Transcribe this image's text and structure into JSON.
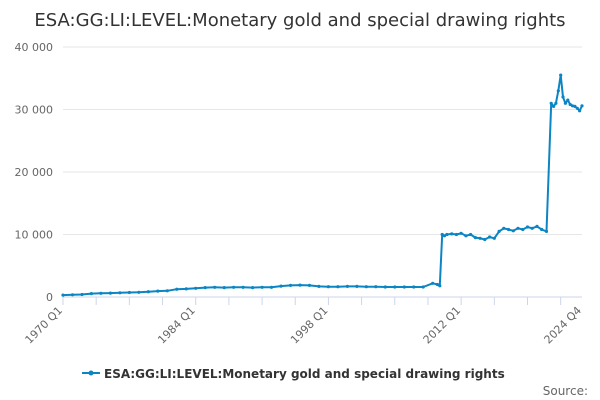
{
  "colors": {
    "series": "#0B85C3",
    "grid": "#e6e6e6",
    "axis": "#ccd6eb",
    "text": "#333333",
    "muted": "#666666"
  },
  "source_label": "Source:",
  "chart_data": {
    "type": "line",
    "title": "ESA:GG:LI:LEVEL:Monetary gold and special drawing rights",
    "xlabel": "",
    "ylabel": "",
    "ylim": [
      0,
      40000
    ],
    "yticks": [
      0,
      10000,
      20000,
      30000,
      40000
    ],
    "ytick_labels": [
      "0",
      "10 000",
      "20 000",
      "30 000",
      "40 000"
    ],
    "xlim": [
      1970.0,
      2024.75
    ],
    "xticks": [
      1970.0,
      1984.0,
      1998.0,
      2012.0,
      2024.75
    ],
    "xtick_labels": [
      "1970 Q1",
      "1984 Q1",
      "1998 Q1",
      "2012 Q1",
      "2024 Q4"
    ],
    "grid": true,
    "legend": "bottom-center",
    "series": [
      {
        "name": "ESA:GG:LI:LEVEL:Monetary gold and special drawing rights",
        "x": [
          1970.0,
          1971.0,
          1972.0,
          1973.0,
          1974.0,
          1975.0,
          1976.0,
          1977.0,
          1978.0,
          1979.0,
          1980.0,
          1981.0,
          1982.0,
          1983.0,
          1984.0,
          1985.0,
          1986.0,
          1987.0,
          1988.0,
          1989.0,
          1990.0,
          1991.0,
          1992.0,
          1993.0,
          1994.0,
          1995.0,
          1996.0,
          1997.0,
          1998.0,
          1999.0,
          2000.0,
          2001.0,
          2002.0,
          2003.0,
          2004.0,
          2005.0,
          2006.0,
          2007.0,
          2008.0,
          2009.0,
          2009.5,
          2009.75,
          2010.0,
          2010.25,
          2010.5,
          2011.0,
          2011.5,
          2012.0,
          2012.5,
          2013.0,
          2013.5,
          2014.0,
          2014.5,
          2015.0,
          2015.5,
          2016.0,
          2016.5,
          2017.0,
          2017.5,
          2018.0,
          2018.5,
          2019.0,
          2019.5,
          2020.0,
          2020.5,
          2021.0,
          2021.5,
          2021.75,
          2022.0,
          2022.25,
          2022.5,
          2022.75,
          2023.0,
          2023.25,
          2023.5,
          2023.75,
          2024.0,
          2024.25,
          2024.5,
          2024.75
        ],
        "values": [
          300,
          350,
          400,
          550,
          600,
          620,
          680,
          720,
          760,
          850,
          950,
          1000,
          1250,
          1300,
          1400,
          1500,
          1550,
          1500,
          1550,
          1550,
          1500,
          1550,
          1550,
          1750,
          1850,
          1900,
          1850,
          1700,
          1650,
          1650,
          1700,
          1700,
          1650,
          1650,
          1600,
          1600,
          1600,
          1600,
          1600,
          2200,
          2000,
          1800,
          10000,
          9800,
          10000,
          10100,
          10000,
          10200,
          9800,
          10000,
          9500,
          9400,
          9200,
          9600,
          9400,
          10500,
          11000,
          10800,
          10600,
          11000,
          10800,
          11200,
          11000,
          11300,
          10800,
          10500,
          31000,
          30500,
          31000,
          33000,
          35500,
          32000,
          31000,
          31500,
          30800,
          30600,
          30500,
          30200,
          29800,
          30600
        ]
      }
    ]
  }
}
